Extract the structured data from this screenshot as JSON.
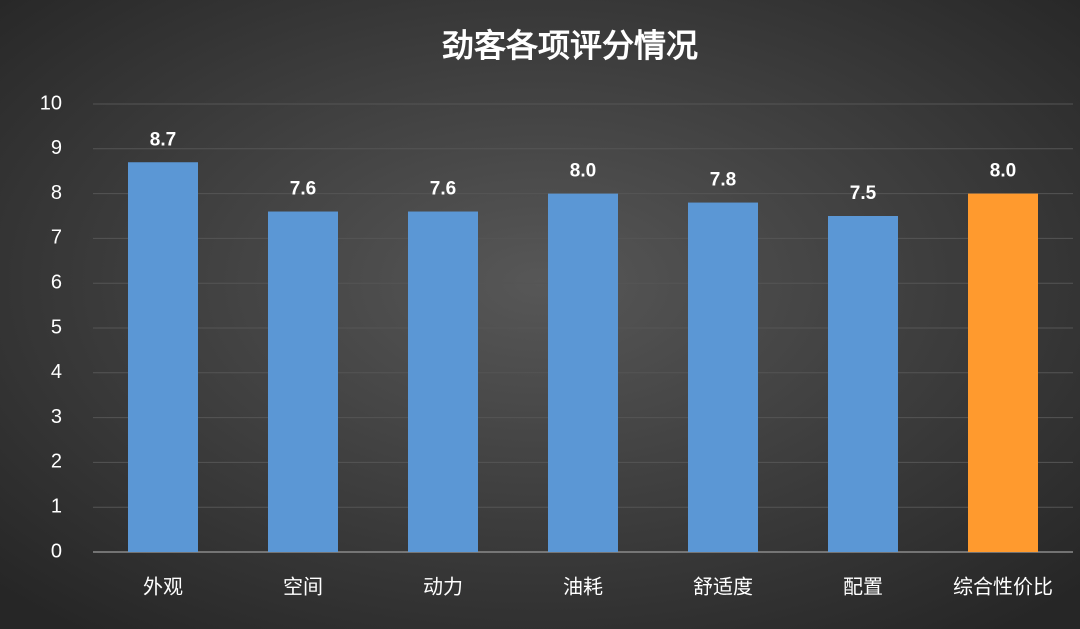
{
  "chart_data": {
    "type": "bar",
    "title": "劲客各项评分情况",
    "categories": [
      "外观",
      "空间",
      "动力",
      "油耗",
      "舒适度",
      "配置",
      "综合性价比"
    ],
    "values": [
      8.7,
      7.6,
      7.6,
      8.0,
      7.8,
      7.5,
      8.0
    ],
    "value_labels": [
      "8.7",
      "7.6",
      "7.6",
      "8.0",
      "7.8",
      "7.5",
      "8.0"
    ],
    "colors": [
      "#5b97d5",
      "#5b97d5",
      "#5b97d5",
      "#5b97d5",
      "#5b97d5",
      "#5b97d5",
      "#ff9a2e"
    ],
    "ylim": [
      0,
      10
    ],
    "yticks": [
      0,
      1,
      2,
      3,
      4,
      5,
      6,
      7,
      8,
      9,
      10
    ],
    "grid": true
  }
}
